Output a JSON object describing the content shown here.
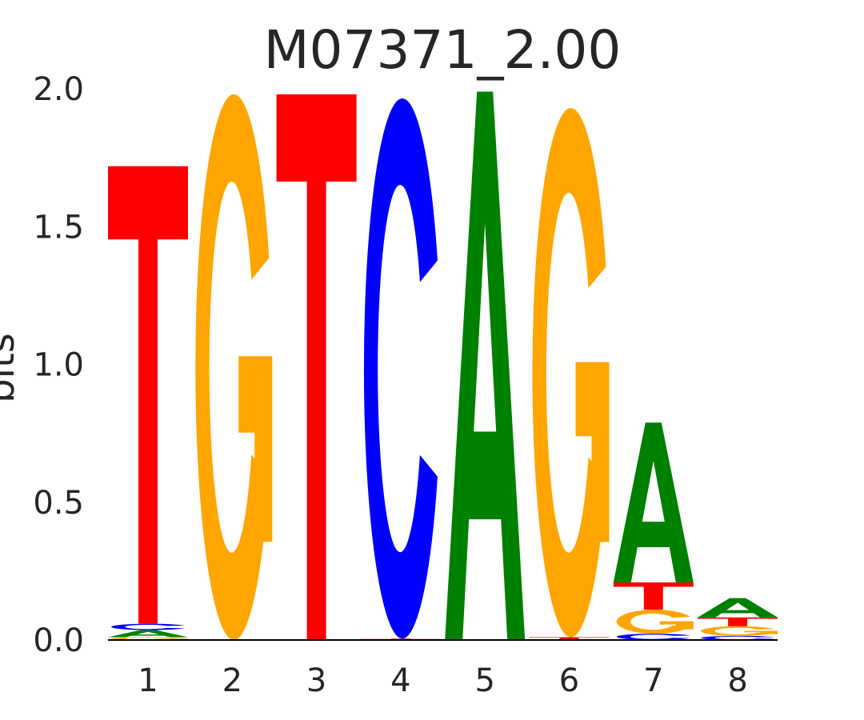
{
  "chart_data": {
    "type": "sequence-logo",
    "title": "M07371_2.00",
    "xlabel": "",
    "ylabel": "bits",
    "ylim": [
      0,
      2.0
    ],
    "yticks": [
      "0.0",
      "0.5",
      "1.0",
      "1.5",
      "2.0"
    ],
    "ytick_values": [
      0,
      0.5,
      1.0,
      1.5,
      2.0
    ],
    "categories": [
      "1",
      "2",
      "3",
      "4",
      "5",
      "6",
      "7",
      "8"
    ],
    "grid": false,
    "colors": {
      "A": "#008000",
      "C": "#0000ff",
      "G": "#ffa500",
      "T": "#ff0000"
    },
    "positions": [
      [
        {
          "base": "G",
          "bits": 0.01
        },
        {
          "base": "A",
          "bits": 0.026
        },
        {
          "base": "C",
          "bits": 0.023
        },
        {
          "base": "T",
          "bits": 1.66
        }
      ],
      [
        {
          "base": "G",
          "bits": 1.98
        }
      ],
      [
        {
          "base": "T",
          "bits": 1.98
        }
      ],
      [
        {
          "base": "T",
          "bits": 0.005
        },
        {
          "base": "C",
          "bits": 1.96
        }
      ],
      [
        {
          "base": "A",
          "bits": 1.99
        }
      ],
      [
        {
          "base": "T",
          "bits": 0.01
        },
        {
          "base": "G",
          "bits": 1.92
        }
      ],
      [
        {
          "base": "C",
          "bits": 0.023
        },
        {
          "base": "G",
          "bits": 0.087
        },
        {
          "base": "T",
          "bits": 0.099
        },
        {
          "base": "A",
          "bits": 0.58
        }
      ],
      [
        {
          "base": "C",
          "bits": 0.015
        },
        {
          "base": "G",
          "bits": 0.035
        },
        {
          "base": "T",
          "bits": 0.032
        },
        {
          "base": "A",
          "bits": 0.07
        }
      ]
    ]
  }
}
